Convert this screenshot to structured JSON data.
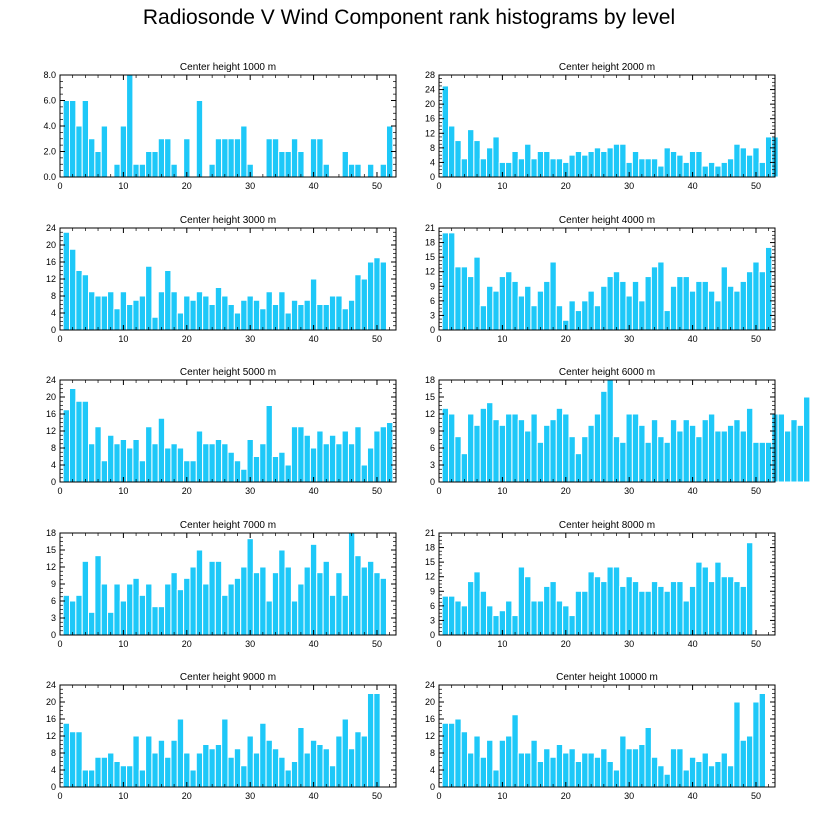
{
  "figure_title": "Radiosonde V Wind Component rank histograms by level",
  "colors": {
    "bar": "#1ec8f8",
    "bar_edge": "#ffffff",
    "axis": "#000000"
  },
  "chart_data": [
    {
      "type": "bar",
      "title": "Center height 1000 m",
      "xlim": [
        0,
        53
      ],
      "ylim": [
        0,
        8
      ],
      "yticks": [
        0,
        2,
        4,
        6,
        8
      ],
      "ytick_labels": [
        "0.0",
        "2.0",
        "4.0",
        "6.0",
        "8.0"
      ],
      "xticks": [
        0,
        10,
        20,
        30,
        40,
        50
      ],
      "values": [
        6,
        6,
        4,
        6,
        3,
        2,
        4,
        0,
        1,
        4,
        8,
        1,
        1,
        2,
        2,
        3,
        3,
        1,
        0,
        3,
        0,
        6,
        0,
        1,
        3,
        3,
        3,
        3,
        4,
        1,
        0,
        0,
        3,
        3,
        2,
        2,
        3,
        2,
        0,
        3,
        3,
        1,
        0,
        0,
        2,
        1,
        1,
        0,
        1,
        0,
        1,
        4
      ]
    },
    {
      "type": "bar",
      "title": "Center height 2000 m",
      "xlim": [
        0,
        53
      ],
      "ylim": [
        0,
        28
      ],
      "yticks": [
        0,
        4,
        8,
        12,
        16,
        20,
        24,
        28
      ],
      "ytick_labels": [
        "0",
        "4",
        "8",
        "12",
        "16",
        "20",
        "24",
        "28"
      ],
      "xticks": [
        0,
        10,
        20,
        30,
        40,
        50
      ],
      "values": [
        25,
        14,
        10,
        5,
        13,
        10,
        5,
        8,
        11,
        4,
        4,
        7,
        5,
        9,
        5,
        7,
        7,
        5,
        5,
        4,
        6,
        7,
        6,
        7,
        8,
        7,
        8,
        9,
        9,
        4,
        7,
        5,
        5,
        5,
        3,
        8,
        7,
        6,
        4,
        7,
        7,
        3,
        4,
        3,
        4,
        5,
        9,
        8,
        6,
        8,
        4,
        11,
        11
      ]
    },
    {
      "type": "bar",
      "title": "Center height 3000 m",
      "xlim": [
        0,
        53
      ],
      "ylim": [
        0,
        24
      ],
      "yticks": [
        0,
        4,
        8,
        12,
        16,
        20,
        24
      ],
      "ytick_labels": [
        "0",
        "4",
        "8",
        "12",
        "16",
        "20",
        "24"
      ],
      "xticks": [
        0,
        10,
        20,
        30,
        40,
        50
      ],
      "values": [
        23,
        19,
        14,
        13,
        9,
        8,
        8,
        9,
        5,
        9,
        6,
        7,
        8,
        15,
        3,
        9,
        14,
        9,
        4,
        8,
        7,
        9,
        8,
        6,
        10,
        8,
        6,
        4,
        7,
        8,
        7,
        5,
        9,
        6,
        9,
        4,
        7,
        6,
        7,
        12,
        6,
        6,
        8,
        8,
        5,
        7,
        13,
        12,
        16,
        17,
        16
      ]
    },
    {
      "type": "bar",
      "title": "Center height 4000 m",
      "xlim": [
        0,
        53
      ],
      "ylim": [
        0,
        21
      ],
      "yticks": [
        0,
        3,
        6,
        9,
        12,
        15,
        18,
        21
      ],
      "ytick_labels": [
        "0",
        "3",
        "6",
        "9",
        "12",
        "15",
        "18",
        "21"
      ],
      "xticks": [
        0,
        10,
        20,
        30,
        40,
        50
      ],
      "values": [
        20,
        20,
        13,
        13,
        11,
        15,
        5,
        9,
        8,
        11,
        12,
        10,
        7,
        9,
        5,
        8,
        10,
        14,
        5,
        2,
        6,
        4,
        6,
        8,
        5,
        9,
        11,
        12,
        10,
        7,
        10,
        6,
        11,
        13,
        14,
        4,
        9,
        11,
        11,
        8,
        10,
        10,
        8,
        6,
        13,
        9,
        8,
        10,
        12,
        14,
        12,
        17
      ]
    },
    {
      "type": "bar",
      "title": "Center height 5000 m",
      "xlim": [
        0,
        53
      ],
      "ylim": [
        0,
        24
      ],
      "yticks": [
        0,
        4,
        8,
        12,
        16,
        20,
        24
      ],
      "ytick_labels": [
        "0",
        "4",
        "8",
        "12",
        "16",
        "20",
        "24"
      ],
      "xticks": [
        0,
        10,
        20,
        30,
        40,
        50
      ],
      "values": [
        17,
        22,
        19,
        19,
        9,
        13,
        5,
        11,
        9,
        10,
        8,
        10,
        5,
        13,
        9,
        15,
        8,
        9,
        8,
        5,
        5,
        12,
        9,
        9,
        10,
        9,
        7,
        5,
        3,
        10,
        6,
        9,
        18,
        6,
        7,
        4,
        13,
        13,
        11,
        8,
        12,
        9,
        11,
        9,
        12,
        9,
        13,
        4,
        8,
        12,
        13,
        14
      ]
    },
    {
      "type": "bar",
      "title": "Center height 6000 m",
      "xlim": [
        0,
        53
      ],
      "ylim": [
        0,
        18
      ],
      "yticks": [
        0,
        3,
        6,
        9,
        12,
        15,
        18
      ],
      "ytick_labels": [
        "0",
        "3",
        "6",
        "9",
        "12",
        "15",
        "18"
      ],
      "xticks": [
        0,
        10,
        20,
        30,
        40,
        50
      ],
      "values": [
        13,
        12,
        8,
        5,
        12,
        10,
        13,
        14,
        11,
        10,
        12,
        12,
        11,
        9,
        12,
        7,
        10,
        11,
        13,
        12,
        8,
        5,
        8,
        10,
        12,
        16,
        18,
        8,
        7,
        12,
        12,
        10,
        7,
        11,
        8,
        7,
        11,
        9,
        11,
        10,
        8,
        11,
        12,
        9,
        9,
        10,
        11,
        9,
        13,
        7,
        7,
        7,
        12,
        12,
        9,
        11,
        10,
        15
      ]
    },
    {
      "type": "bar",
      "title": "Center height 7000 m",
      "xlim": [
        0,
        53
      ],
      "ylim": [
        0,
        18
      ],
      "yticks": [
        0,
        3,
        6,
        9,
        12,
        15,
        18
      ],
      "ytick_labels": [
        "0",
        "3",
        "6",
        "9",
        "12",
        "15",
        "18"
      ],
      "xticks": [
        0,
        10,
        20,
        30,
        40,
        50
      ],
      "values": [
        7,
        6,
        7,
        13,
        4,
        14,
        9,
        4,
        9,
        6,
        9,
        10,
        7,
        9,
        5,
        5,
        9,
        11,
        8,
        10,
        12,
        15,
        9,
        13,
        13,
        7,
        9,
        10,
        12,
        17,
        11,
        12,
        6,
        11,
        15,
        12,
        6,
        9,
        12,
        16,
        11,
        13,
        7,
        11,
        7,
        18,
        14,
        12,
        13,
        11,
        10
      ]
    },
    {
      "type": "bar",
      "title": "Center height 8000 m",
      "xlim": [
        0,
        53
      ],
      "ylim": [
        0,
        21
      ],
      "yticks": [
        0,
        3,
        6,
        9,
        12,
        15,
        18,
        21
      ],
      "ytick_labels": [
        "0",
        "3",
        "6",
        "9",
        "12",
        "15",
        "18",
        "21"
      ],
      "xticks": [
        0,
        10,
        20,
        30,
        40,
        50
      ],
      "values": [
        8,
        8,
        7,
        6,
        11,
        13,
        9,
        6,
        4,
        5,
        7,
        4,
        14,
        12,
        7,
        7,
        10,
        11,
        7,
        6,
        4,
        9,
        9,
        13,
        12,
        11,
        14,
        14,
        10,
        12,
        11,
        9,
        9,
        11,
        10,
        9,
        11,
        11,
        7,
        10,
        15,
        14,
        11,
        15,
        12,
        12,
        11,
        10,
        19
      ]
    },
    {
      "type": "bar",
      "title": "Center height 9000 m",
      "xlim": [
        0,
        53
      ],
      "ylim": [
        0,
        24
      ],
      "yticks": [
        0,
        4,
        8,
        12,
        16,
        20,
        24
      ],
      "ytick_labels": [
        "0",
        "4",
        "8",
        "12",
        "16",
        "20",
        "24"
      ],
      "xticks": [
        0,
        10,
        20,
        30,
        40,
        50
      ],
      "values": [
        15,
        13,
        13,
        4,
        4,
        7,
        7,
        8,
        6,
        5,
        5,
        12,
        4,
        12,
        8,
        11,
        7,
        11,
        16,
        8,
        4,
        8,
        10,
        9,
        10,
        16,
        7,
        9,
        5,
        12,
        8,
        15,
        11,
        9,
        7,
        4,
        6,
        14,
        8,
        11,
        10,
        9,
        5,
        12,
        16,
        9,
        13,
        12,
        22,
        22
      ]
    },
    {
      "type": "bar",
      "title": "Center height 10000 m",
      "xlim": [
        0,
        53
      ],
      "ylim": [
        0,
        24
      ],
      "yticks": [
        0,
        4,
        8,
        12,
        16,
        20,
        24
      ],
      "ytick_labels": [
        "0",
        "4",
        "8",
        "12",
        "16",
        "20",
        "24"
      ],
      "xticks": [
        0,
        10,
        20,
        30,
        40,
        50
      ],
      "values": [
        15,
        15,
        16,
        13,
        8,
        12,
        7,
        11,
        4,
        11,
        12,
        17,
        8,
        8,
        11,
        6,
        9,
        7,
        10,
        8,
        9,
        6,
        8,
        8,
        7,
        9,
        6,
        4,
        12,
        9,
        9,
        10,
        14,
        7,
        5,
        3,
        9,
        9,
        4,
        7,
        6,
        8,
        5,
        6,
        8,
        5,
        20,
        11,
        12,
        20,
        22
      ]
    }
  ]
}
